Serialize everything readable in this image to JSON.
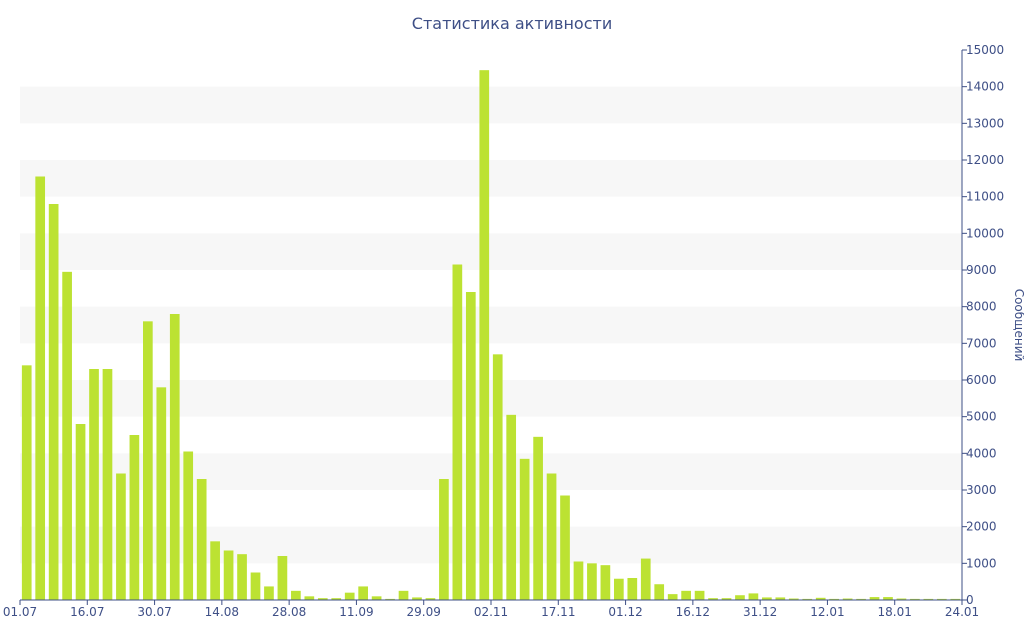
{
  "chart_data": {
    "type": "bar",
    "title": "Статистика активности",
    "xlabel": "",
    "ylabel": "Сообщений",
    "y_axis_side": "right",
    "ylim": [
      0,
      15000
    ],
    "y_ticks": [
      0,
      1000,
      2000,
      3000,
      4000,
      5000,
      6000,
      7000,
      8000,
      9000,
      10000,
      11000,
      12000,
      13000,
      14000,
      15000
    ],
    "x_tick_labels": [
      "01.07",
      "16.07",
      "30.07",
      "14.08",
      "28.08",
      "11.09",
      "29.09",
      "02.11",
      "17.11",
      "01.12",
      "16.12",
      "31.12",
      "12.01",
      "18.01",
      "24.01"
    ],
    "grid": "horizontal alternating bands",
    "colors": {
      "bar": "#bce232",
      "axis": "#3e4f86",
      "band": "#f7f7f7"
    },
    "values": [
      6400,
      11550,
      10800,
      8950,
      4800,
      6300,
      6300,
      3450,
      4500,
      7600,
      5800,
      7800,
      4050,
      3300,
      1600,
      1350,
      1250,
      750,
      370,
      1200,
      250,
      100,
      50,
      50,
      200,
      370,
      100,
      30,
      250,
      70,
      50,
      3300,
      9150,
      8400,
      14450,
      6700,
      5050,
      3850,
      4450,
      3450,
      2850,
      1050,
      1000,
      950,
      580,
      600,
      1130,
      430,
      160,
      250,
      250,
      50,
      50,
      130,
      180,
      70,
      70,
      40,
      30,
      60,
      30,
      40,
      30,
      80,
      80,
      40,
      30,
      30,
      30,
      30
    ]
  }
}
